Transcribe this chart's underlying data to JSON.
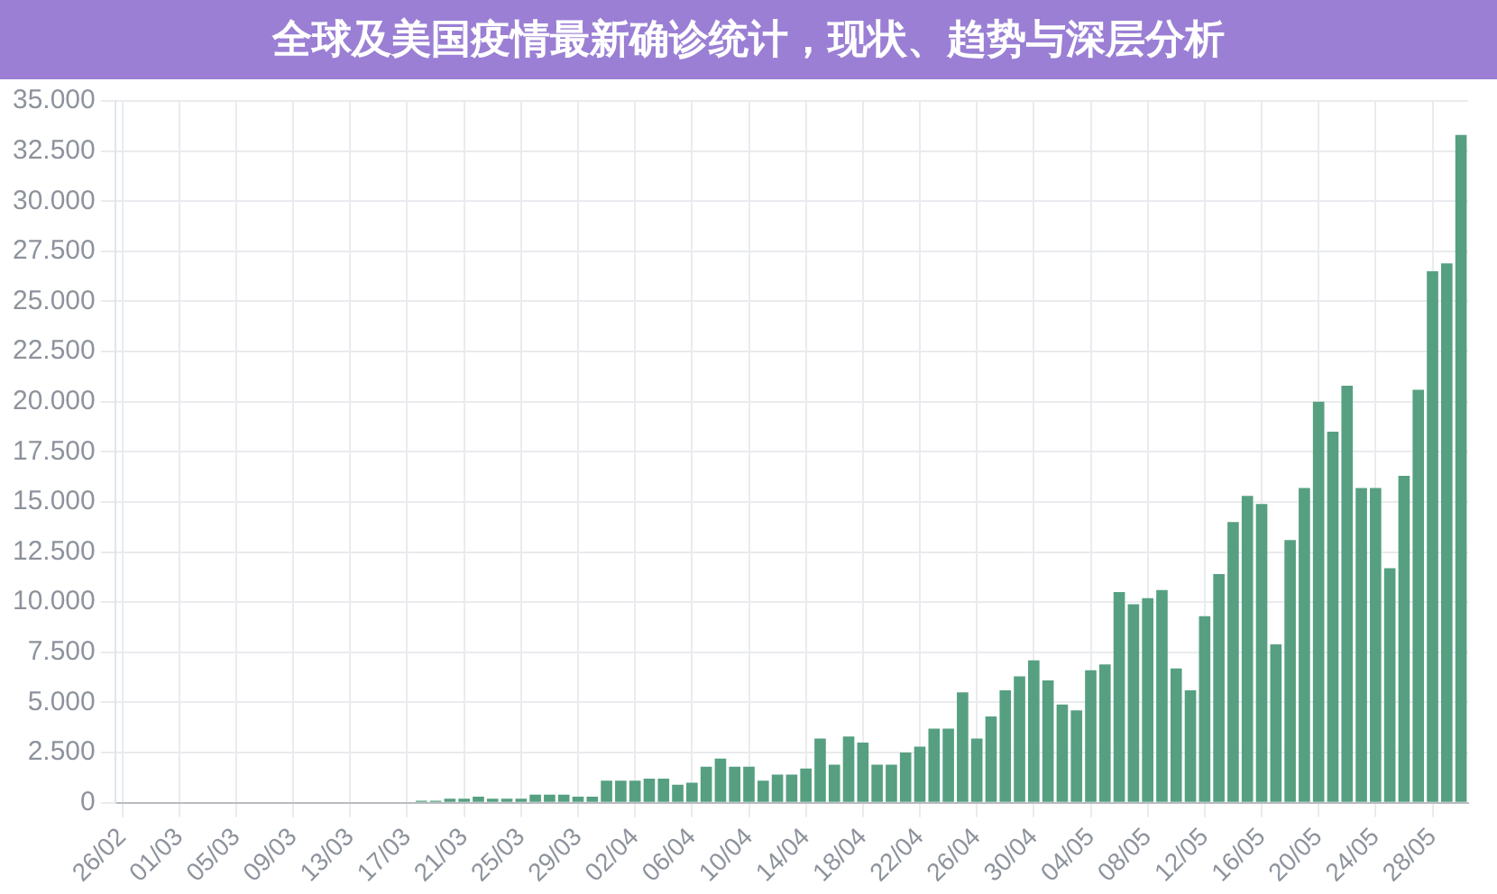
{
  "chart_data": {
    "type": "bar",
    "title": "全球及美国疫情最新确诊统计，现状、趋势与深层分析",
    "categories": [
      "26/02",
      null,
      null,
      null,
      "01/03",
      null,
      null,
      null,
      "05/03",
      null,
      null,
      null,
      "09/03",
      null,
      null,
      null,
      "13/03",
      null,
      null,
      null,
      "17/03",
      null,
      null,
      null,
      "21/03",
      null,
      null,
      null,
      "25/03",
      null,
      null,
      null,
      "29/03",
      null,
      null,
      null,
      "02/04",
      null,
      null,
      null,
      "06/04",
      null,
      null,
      null,
      "10/04",
      null,
      null,
      null,
      "14/04",
      null,
      null,
      null,
      "18/04",
      null,
      null,
      null,
      "22/04",
      null,
      null,
      null,
      "26/04",
      null,
      null,
      null,
      "30/04",
      null,
      null,
      null,
      "04/05",
      null,
      null,
      null,
      "08/05",
      null,
      null,
      null,
      "12/05",
      null,
      null,
      null,
      "16/05",
      null,
      null,
      null,
      "20/05",
      null,
      null,
      null,
      "24/05",
      null,
      null,
      null,
      "28/05",
      null,
      null
    ],
    "values": [
      0,
      0,
      0,
      0,
      0,
      0,
      0,
      0,
      0,
      0,
      0,
      0,
      0,
      0,
      0,
      0,
      0,
      0,
      0,
      0,
      0,
      100,
      100,
      200,
      200,
      300,
      200,
      200,
      200,
      400,
      400,
      400,
      300,
      300,
      1100,
      1100,
      1100,
      1200,
      1200,
      900,
      1000,
      1800,
      2200,
      1800,
      1800,
      1100,
      1400,
      1400,
      1700,
      3200,
      1900,
      3300,
      3000,
      1900,
      1900,
      2500,
      2800,
      3700,
      3700,
      5500,
      3200,
      4300,
      5600,
      6300,
      7100,
      6100,
      4900,
      4600,
      6600,
      6900,
      10500,
      9900,
      10200,
      10600,
      6700,
      5600,
      9300,
      11400,
      14000,
      15300,
      14900,
      7900,
      13100,
      15700,
      20000,
      18500,
      20800,
      15700,
      15700,
      11700,
      16300,
      20600,
      26500,
      26900,
      33300
    ],
    "color": "#56a081",
    "ylim": [
      0,
      35000
    ],
    "yticks": [
      0,
      {
        "value": 2500,
        "label": "2.500"
      },
      {
        "value": 5000,
        "label": "5.000"
      },
      {
        "value": 7500,
        "label": "7.500"
      },
      {
        "value": 10000,
        "label": "10.000"
      },
      {
        "value": 12500,
        "label": "12.500"
      },
      {
        "value": 15000,
        "label": "15.000"
      },
      {
        "value": 17500,
        "label": "17.500"
      },
      {
        "value": 20000,
        "label": "20.000"
      },
      {
        "value": 22500,
        "label": "22.500"
      },
      {
        "value": 25000,
        "label": "25.000"
      },
      {
        "value": 27500,
        "label": "27.500"
      },
      {
        "value": 30000,
        "label": "30.000"
      },
      {
        "value": 32500,
        "label": "32.500"
      },
      {
        "value": 35000,
        "label": "35.000"
      }
    ],
    "grid": true
  }
}
